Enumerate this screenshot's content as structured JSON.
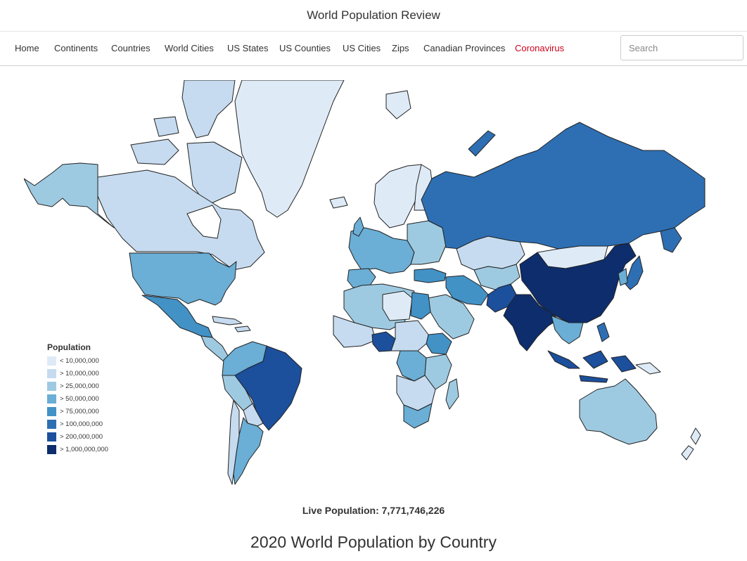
{
  "site": {
    "title": "World Population Review"
  },
  "nav": {
    "items": [
      {
        "label": "Home"
      },
      {
        "label": "Continents"
      },
      {
        "label": "Countries"
      },
      {
        "label": "World Cities"
      },
      {
        "label": "US States"
      },
      {
        "label": "US Counties"
      },
      {
        "label": "US Cities"
      },
      {
        "label": "Zips"
      },
      {
        "label": "Canadian Provinces"
      },
      {
        "label": "Coronavirus",
        "color": "#d0021b"
      }
    ],
    "search_placeholder": "Search"
  },
  "legend": {
    "title": "Population",
    "items": [
      {
        "label": "< 10,000,000",
        "color": "#deebf7"
      },
      {
        "label": "> 10,000,000",
        "color": "#c6dbef"
      },
      {
        "label": "> 25,000,000",
        "color": "#9ecae1"
      },
      {
        "label": "> 50,000,000",
        "color": "#6baed6"
      },
      {
        "label": "> 75,000,000",
        "color": "#4292c6"
      },
      {
        "label": "> 100,000,000",
        "color": "#2e6fb4"
      },
      {
        "label": "> 200,000,000",
        "color": "#1c4f9c"
      },
      {
        "label": "> 1,000,000,000",
        "color": "#0d2d6c"
      }
    ]
  },
  "map": {
    "regions": [
      {
        "name": "Greenland",
        "class": 0
      },
      {
        "name": "Canada",
        "class": 2
      },
      {
        "name": "Alaska",
        "class": 6
      },
      {
        "name": "United States",
        "class": 6
      },
      {
        "name": "Mexico",
        "class": 5
      },
      {
        "name": "Brazil",
        "class": 6
      },
      {
        "name": "Argentina",
        "class": 3
      },
      {
        "name": "Chile",
        "class": 1
      },
      {
        "name": "Russia",
        "class": 5
      },
      {
        "name": "China",
        "class": 7
      },
      {
        "name": "India",
        "class": 7
      },
      {
        "name": "Pakistan",
        "class": 6
      },
      {
        "name": "Indonesia",
        "class": 6
      },
      {
        "name": "Australia",
        "class": 2
      },
      {
        "name": "Nigeria",
        "class": 6
      },
      {
        "name": "Egypt",
        "class": 5
      },
      {
        "name": "Ethiopia",
        "class": 5
      },
      {
        "name": "DR Congo",
        "class": 4
      },
      {
        "name": "South Africa",
        "class": 3
      },
      {
        "name": "Kazakhstan",
        "class": 1
      },
      {
        "name": "Mongolia",
        "class": 0
      },
      {
        "name": "Iran",
        "class": 4
      },
      {
        "name": "Saudi Arabia",
        "class": 2
      },
      {
        "name": "Algeria",
        "class": 2
      },
      {
        "name": "Libya",
        "class": 0
      },
      {
        "name": "Scandinavia",
        "class": 0
      },
      {
        "name": "Western Europe",
        "class": 3
      },
      {
        "name": "Japan",
        "class": 5
      },
      {
        "name": "New Zealand",
        "class": 0
      }
    ]
  },
  "live": {
    "label": "Live Population: 7,771,746,226"
  },
  "headline": "2020 World Population by Country"
}
